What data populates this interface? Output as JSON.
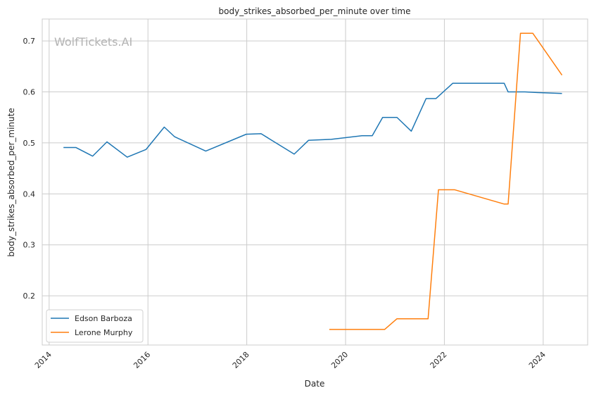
{
  "chart_data": {
    "type": "line",
    "title": "body_strikes_absorbed_per_minute over time",
    "xlabel": "Date",
    "ylabel": "body_strikes_absorbed_per_minute",
    "watermark": "WolfTickets.AI",
    "xlim": [
      2013.86,
      2024.9
    ],
    "ylim": [
      0.1035,
      0.743
    ],
    "x_ticks": [
      2014,
      2016,
      2018,
      2020,
      2022,
      2024
    ],
    "y_ticks": [
      0.2,
      0.3,
      0.4,
      0.5,
      0.6,
      0.7
    ],
    "grid": true,
    "legend_position": "lower-left",
    "series": [
      {
        "name": "Edson Barboza",
        "color": "#1f77b4",
        "points": [
          [
            2014.29,
            0.491
          ],
          [
            2014.54,
            0.491
          ],
          [
            2014.88,
            0.474
          ],
          [
            2015.17,
            0.502
          ],
          [
            2015.58,
            0.472
          ],
          [
            2015.96,
            0.487
          ],
          [
            2016.33,
            0.531
          ],
          [
            2016.54,
            0.512
          ],
          [
            2017.17,
            0.484
          ],
          [
            2017.99,
            0.517
          ],
          [
            2018.29,
            0.518
          ],
          [
            2018.96,
            0.478
          ],
          [
            2019.25,
            0.505
          ],
          [
            2019.71,
            0.507
          ],
          [
            2020.33,
            0.514
          ],
          [
            2020.54,
            0.514
          ],
          [
            2020.75,
            0.55
          ],
          [
            2021.04,
            0.55
          ],
          [
            2021.33,
            0.523
          ],
          [
            2021.63,
            0.587
          ],
          [
            2021.83,
            0.587
          ],
          [
            2022.17,
            0.617
          ],
          [
            2023.21,
            0.617
          ],
          [
            2023.29,
            0.6
          ],
          [
            2023.63,
            0.6
          ],
          [
            2023.83,
            0.599
          ],
          [
            2024.38,
            0.597
          ]
        ]
      },
      {
        "name": "Lerone Murphy",
        "color": "#ff7f0e",
        "points": [
          [
            2019.67,
            0.134
          ],
          [
            2020.79,
            0.134
          ],
          [
            2021.04,
            0.155
          ],
          [
            2021.67,
            0.155
          ],
          [
            2021.88,
            0.408
          ],
          [
            2022.21,
            0.408
          ],
          [
            2023.21,
            0.38
          ],
          [
            2023.29,
            0.38
          ],
          [
            2023.54,
            0.715
          ],
          [
            2023.79,
            0.715
          ],
          [
            2024.38,
            0.633
          ]
        ]
      }
    ]
  }
}
